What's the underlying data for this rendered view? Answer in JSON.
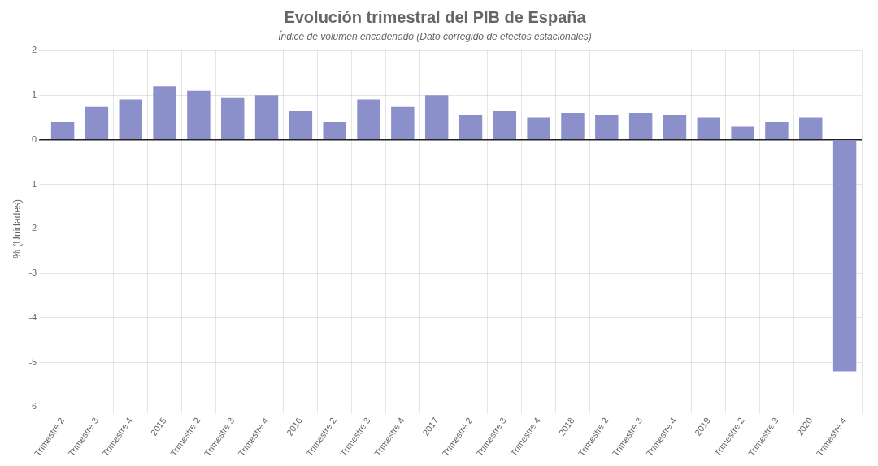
{
  "chart_data": {
    "type": "bar",
    "title": "Evolución trimestral del PIB de España",
    "subtitle": "Índice de volumen encadenado (Dato corregido de efectos estacionales)",
    "ylabel": "% (Unidades)",
    "categories": [
      "Trimestre 2",
      "Trimestre 3",
      "Trimestre 4",
      "2015",
      "Trimestre 2",
      "Trimestre 3",
      "Trimestre 4",
      "2016",
      "Trimestre 2",
      "Trimestre 3",
      "Trimestre 4",
      "2017",
      "Trimestre 2",
      "Trimestre 3",
      "Trimestre 4",
      "2018",
      "Trimestre 2",
      "Trimestre 3",
      "Trimestre 4",
      "2019",
      "Trimestre 2",
      "Trimestre 3",
      "2020",
      "Trimestre 4"
    ],
    "values": [
      0.4,
      0.75,
      0.9,
      1.2,
      1.1,
      0.95,
      1.0,
      0.65,
      0.4,
      0.9,
      0.75,
      1.0,
      0.55,
      0.65,
      0.5,
      0.6,
      0.55,
      0.6,
      0.55,
      0.5,
      0.3,
      0.4,
      0.5,
      -5.2
    ],
    "color": "#8b8fca",
    "ylim": [
      -6,
      2
    ],
    "yticks": [
      -6,
      -5,
      -4,
      -3,
      -2,
      -1,
      0,
      1,
      2
    ],
    "grid": true
  }
}
